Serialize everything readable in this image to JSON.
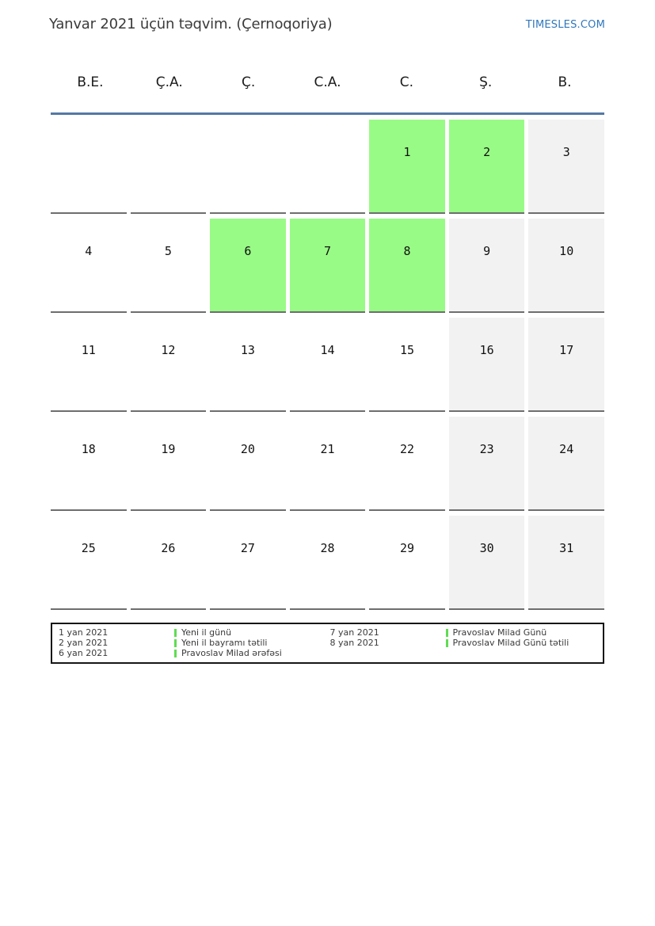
{
  "header": {
    "title": "Yanvar 2021 üçün təqvim. (Çernoqoriya)",
    "site": "TIMESLES.COM"
  },
  "calendar": {
    "day_headers": [
      "B.E.",
      "Ç.A.",
      "Ç.",
      "C.A.",
      "C.",
      "Ş.",
      "B."
    ],
    "weeks": [
      [
        {
          "label": "",
          "kind": "empty"
        },
        {
          "label": "",
          "kind": "empty"
        },
        {
          "label": "",
          "kind": "empty"
        },
        {
          "label": "",
          "kind": "empty"
        },
        {
          "label": "1",
          "kind": "holiday"
        },
        {
          "label": "2",
          "kind": "holiday"
        },
        {
          "label": "3",
          "kind": "weekend"
        }
      ],
      [
        {
          "label": "4",
          "kind": "normal"
        },
        {
          "label": "5",
          "kind": "normal"
        },
        {
          "label": "6",
          "kind": "holiday"
        },
        {
          "label": "7",
          "kind": "holiday"
        },
        {
          "label": "8",
          "kind": "holiday"
        },
        {
          "label": "9",
          "kind": "weekend"
        },
        {
          "label": "10",
          "kind": "weekend"
        }
      ],
      [
        {
          "label": "11",
          "kind": "normal"
        },
        {
          "label": "12",
          "kind": "normal"
        },
        {
          "label": "13",
          "kind": "normal"
        },
        {
          "label": "14",
          "kind": "normal"
        },
        {
          "label": "15",
          "kind": "normal"
        },
        {
          "label": "16",
          "kind": "weekend"
        },
        {
          "label": "17",
          "kind": "weekend"
        }
      ],
      [
        {
          "label": "18",
          "kind": "normal"
        },
        {
          "label": "19",
          "kind": "normal"
        },
        {
          "label": "20",
          "kind": "normal"
        },
        {
          "label": "21",
          "kind": "normal"
        },
        {
          "label": "22",
          "kind": "normal"
        },
        {
          "label": "23",
          "kind": "weekend"
        },
        {
          "label": "24",
          "kind": "weekend"
        }
      ],
      [
        {
          "label": "25",
          "kind": "normal"
        },
        {
          "label": "26",
          "kind": "normal"
        },
        {
          "label": "27",
          "kind": "normal"
        },
        {
          "label": "28",
          "kind": "normal"
        },
        {
          "label": "29",
          "kind": "normal"
        },
        {
          "label": "30",
          "kind": "weekend"
        },
        {
          "label": "31",
          "kind": "weekend"
        }
      ]
    ]
  },
  "legend": {
    "left": [
      {
        "date": "1 yan 2021",
        "name": "Yeni il günü"
      },
      {
        "date": "2 yan 2021",
        "name": "Yeni il bayramı tətili"
      },
      {
        "date": "6 yan 2021",
        "name": "Pravoslav Milad ərəfəsi"
      }
    ],
    "right": [
      {
        "date": "7 yan 2021",
        "name": "Pravoslav Milad Günü"
      },
      {
        "date": "8 yan 2021",
        "name": "Pravoslav Milad Günü tətili"
      }
    ]
  },
  "colors": {
    "holiday_green": "#98fb85",
    "weekend_gray": "#f2f2f2",
    "header_line_blue": "#5578a5",
    "site_link_blue": "#3077bc",
    "legend_marker_green": "#5fdd52",
    "cell_border": "#6e6e6e"
  }
}
